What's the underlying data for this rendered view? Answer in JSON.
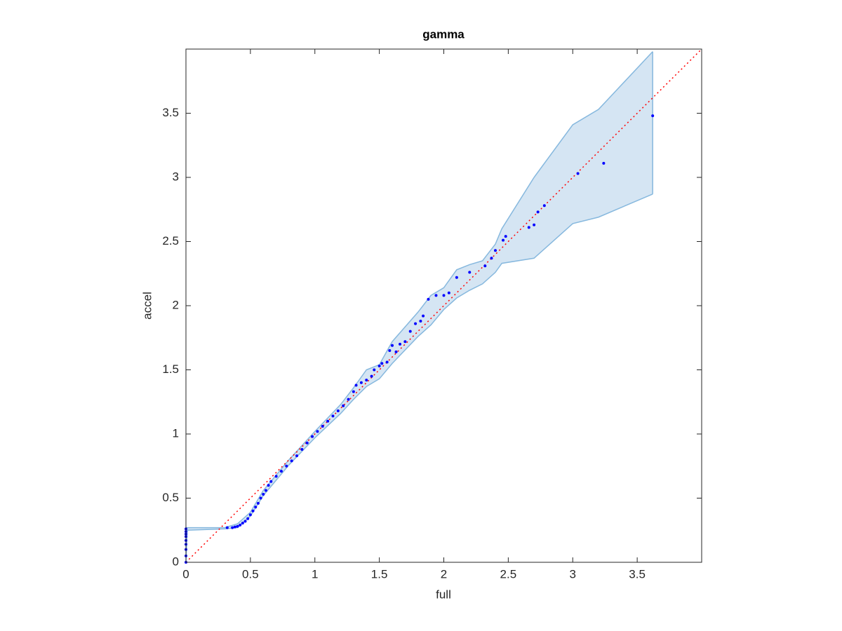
{
  "chart_data": {
    "type": "scatter",
    "title": "gamma",
    "x_label": "full",
    "y_label": "accel",
    "xlim": [
      0,
      4
    ],
    "ylim": [
      0,
      4
    ],
    "xticks": [
      0,
      0.5,
      1,
      1.5,
      2,
      2.5,
      3,
      3.5
    ],
    "yticks": [
      0,
      0.5,
      1,
      1.5,
      2,
      2.5,
      3,
      3.5
    ],
    "box": true,
    "series": [
      {
        "color": "#0000ff",
        "x": [
          0,
          0,
          0,
          0,
          0,
          0,
          0,
          0,
          0,
          0.32,
          0.36,
          0.38,
          0.4,
          0.42,
          0.44,
          0.46,
          0.48,
          0.5,
          0.52,
          0.54,
          0.56,
          0.58,
          0.6,
          0.62,
          0.64,
          0.66,
          0.7,
          0.74,
          0.78,
          0.82,
          0.86,
          0.9,
          0.94,
          0.98,
          1.02,
          1.06,
          1.1,
          1.14,
          1.18,
          1.22,
          1.26,
          1.3,
          1.32,
          1.36,
          1.4,
          1.44,
          1.46,
          1.5,
          1.52,
          1.56,
          1.58,
          1.6,
          1.63,
          1.66,
          1.7,
          1.74,
          1.78,
          1.82,
          1.84,
          1.88,
          1.94,
          2.0,
          2.04,
          2.1,
          2.2,
          2.32,
          2.37,
          2.4,
          2.46,
          2.48,
          2.66,
          2.7,
          2.73,
          2.78,
          3.04,
          3.24,
          3.62
        ],
        "y": [
          0,
          0.05,
          0.1,
          0.14,
          0.17,
          0.2,
          0.22,
          0.24,
          0.26,
          0.27,
          0.27,
          0.275,
          0.28,
          0.29,
          0.305,
          0.32,
          0.34,
          0.37,
          0.4,
          0.43,
          0.46,
          0.5,
          0.53,
          0.56,
          0.6,
          0.63,
          0.67,
          0.71,
          0.75,
          0.79,
          0.83,
          0.88,
          0.93,
          0.98,
          1.02,
          1.06,
          1.1,
          1.14,
          1.18,
          1.22,
          1.27,
          1.33,
          1.38,
          1.4,
          1.42,
          1.45,
          1.5,
          1.53,
          1.55,
          1.56,
          1.65,
          1.69,
          1.64,
          1.7,
          1.72,
          1.8,
          1.86,
          1.88,
          1.92,
          2.05,
          2.08,
          2.08,
          2.1,
          2.22,
          2.26,
          2.31,
          2.37,
          2.43,
          2.51,
          2.54,
          2.61,
          2.63,
          2.73,
          2.78,
          3.03,
          3.11,
          3.48
        ]
      }
    ],
    "band": {
      "color": "#d5e5f3",
      "edge_color": "#86b8de",
      "x": [
        0,
        0.01,
        0.3,
        0.4,
        0.5,
        0.6,
        0.8,
        1.0,
        1.2,
        1.3,
        1.4,
        1.5,
        1.6,
        1.8,
        1.9,
        2.0,
        2.1,
        2.2,
        2.3,
        2.4,
        2.45,
        2.7,
        3.0,
        3.2,
        3.62
      ],
      "lower": [
        0,
        0.25,
        0.26,
        0.27,
        0.36,
        0.52,
        0.76,
        0.97,
        1.16,
        1.27,
        1.37,
        1.43,
        1.55,
        1.76,
        1.85,
        1.97,
        2.06,
        2.12,
        2.17,
        2.26,
        2.33,
        2.37,
        2.64,
        2.69,
        2.87
      ],
      "upper": [
        0.27,
        0.27,
        0.27,
        0.3,
        0.39,
        0.56,
        0.8,
        1.02,
        1.23,
        1.36,
        1.5,
        1.54,
        1.72,
        1.95,
        2.08,
        2.14,
        2.28,
        2.32,
        2.35,
        2.48,
        2.6,
        3.0,
        3.41,
        3.53,
        3.98
      ]
    },
    "reference_line": {
      "x": [
        0,
        4
      ],
      "y": [
        0,
        4
      ],
      "color": "#ff0000",
      "dotted": true
    }
  }
}
